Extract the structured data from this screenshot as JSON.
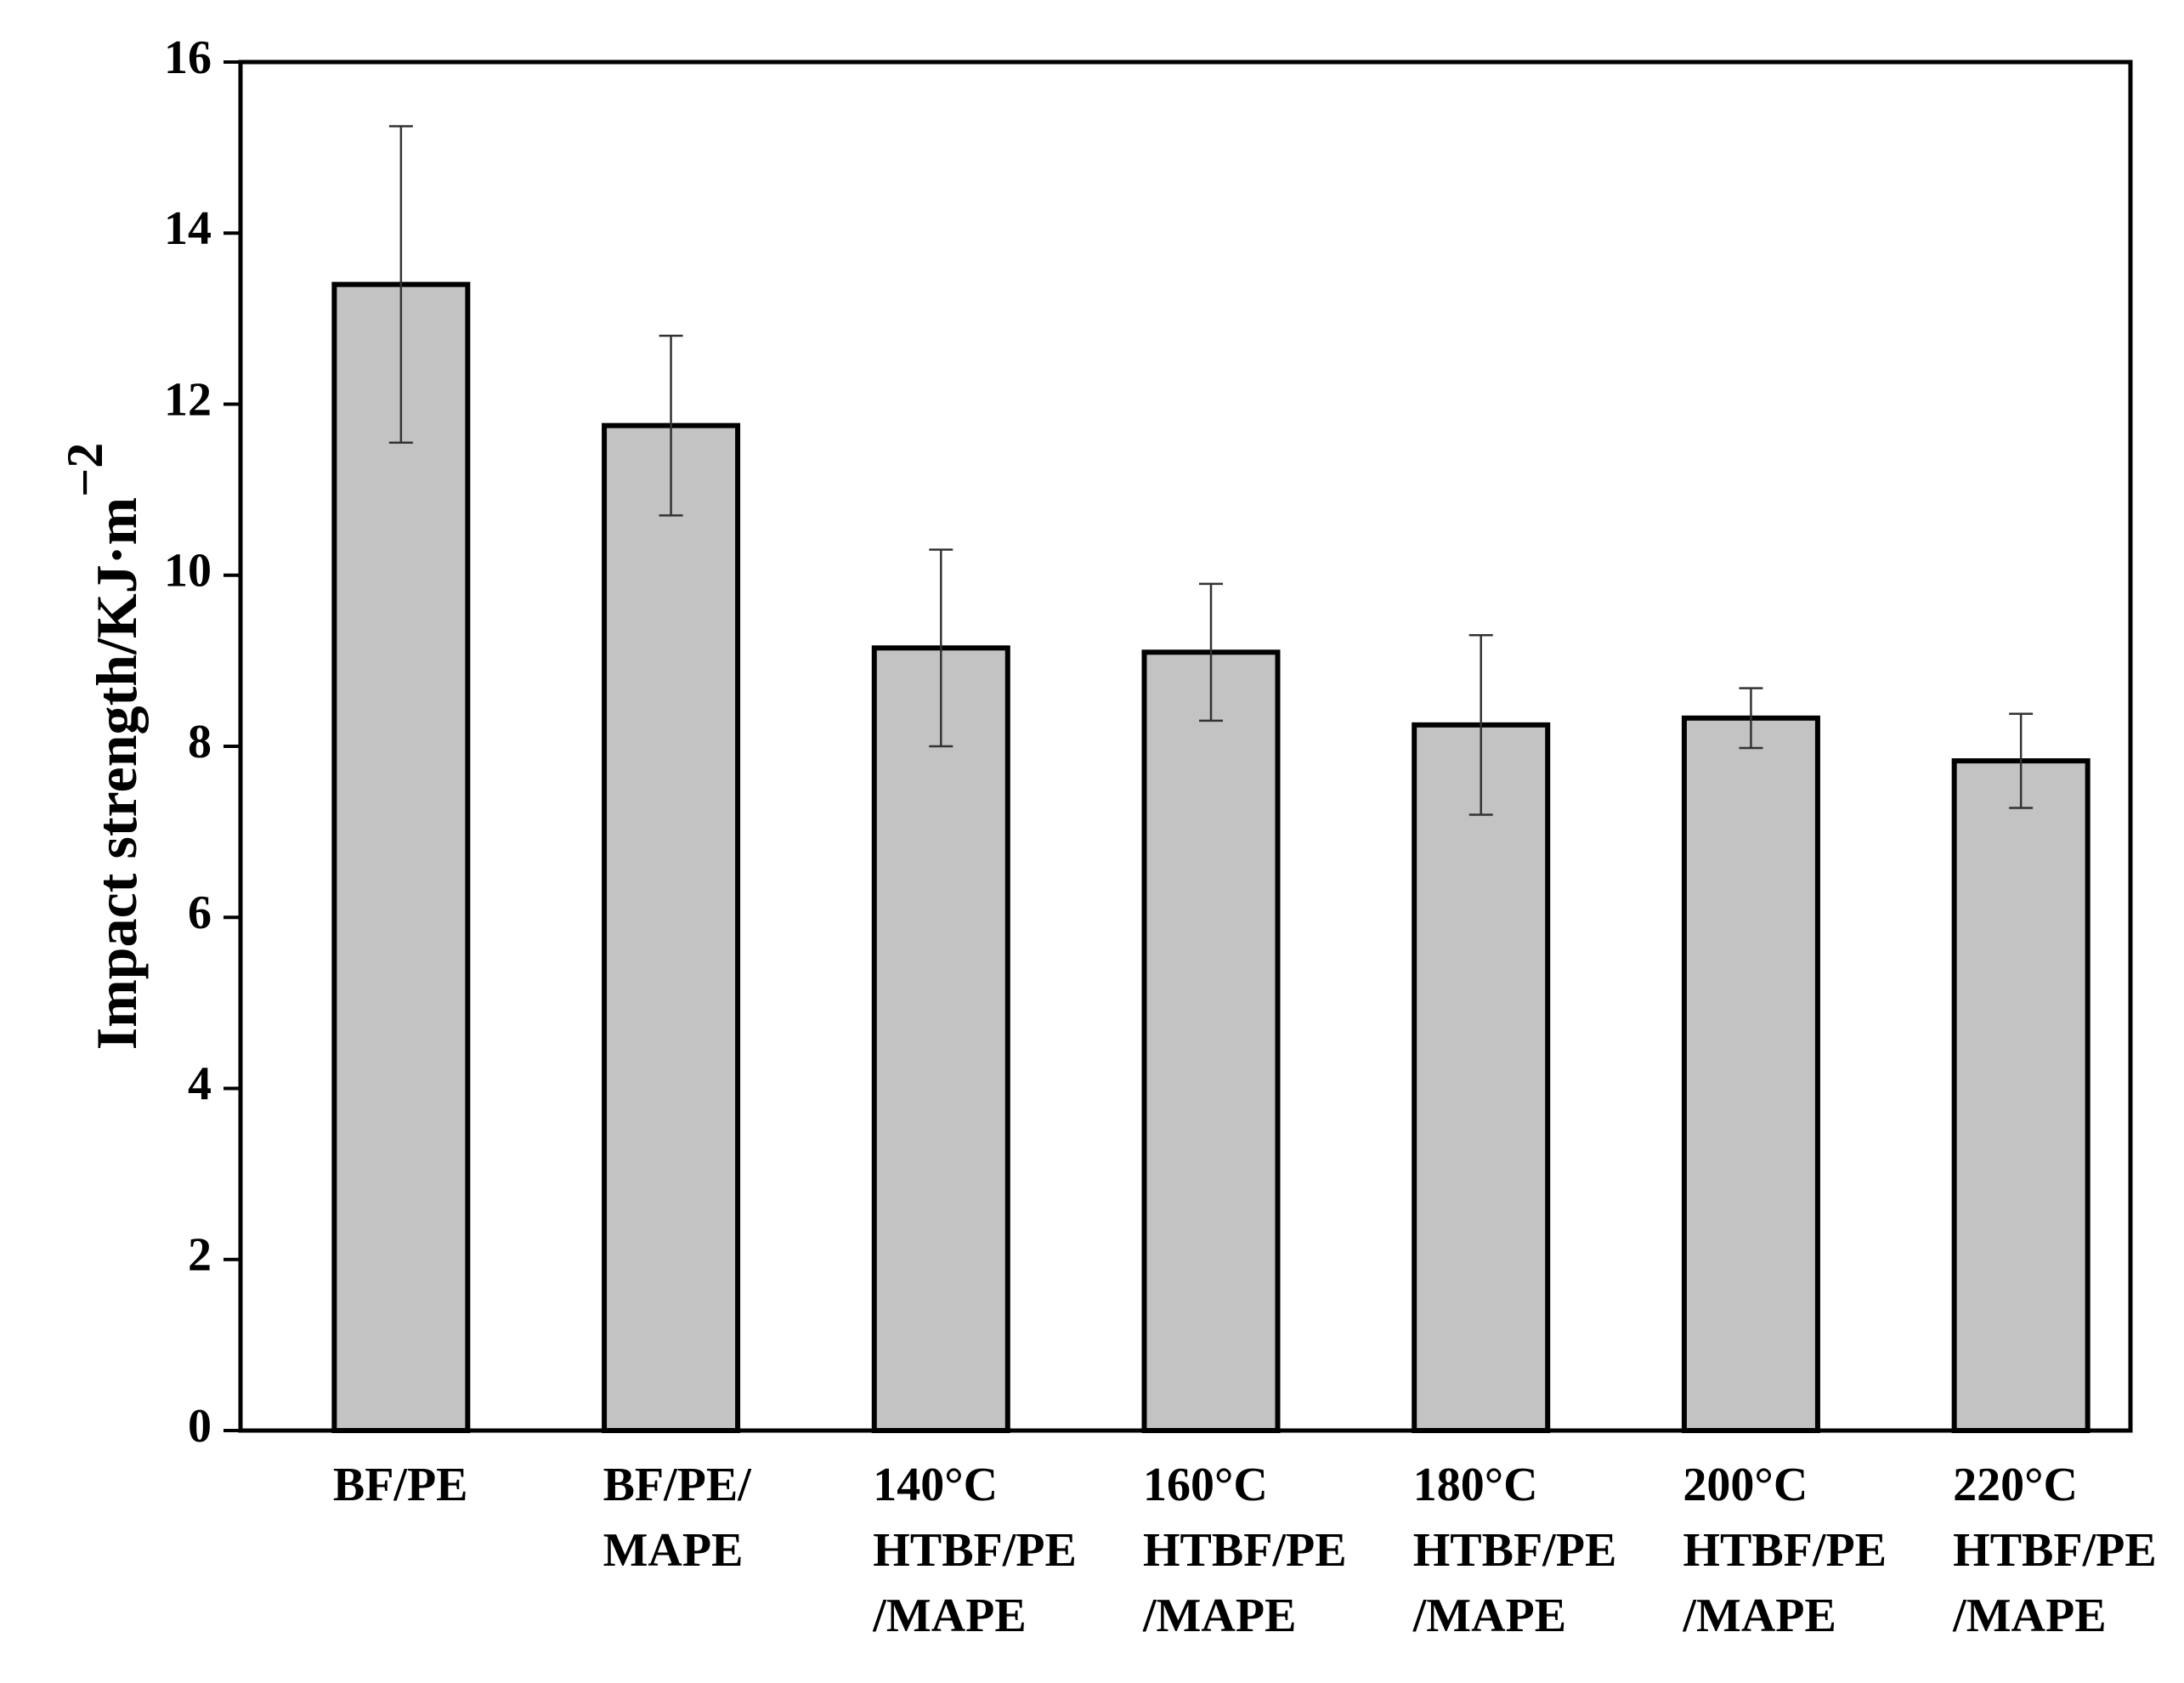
{
  "chart_data": {
    "type": "bar",
    "y_label": "Impact strength/KJ·m",
    "y_label_exponent": "−2",
    "categories": [
      [
        "BF/PE"
      ],
      [
        "BF/PE/",
        "MAPE"
      ],
      [
        "140°C",
        "HTBF/PE",
        "/MAPE"
      ],
      [
        "160°C",
        "HTBF/PE",
        "/MAPE"
      ],
      [
        "180°C",
        "HTBF/PE",
        "/MAPE"
      ],
      [
        "200°C",
        "HTBF/PE",
        "/MAPE"
      ],
      [
        "220°C",
        "HTBF/PE",
        "/MAPE"
      ]
    ],
    "values": [
      13.4,
      11.75,
      9.15,
      9.1,
      8.25,
      8.33,
      7.83
    ],
    "errors": [
      1.85,
      1.05,
      1.15,
      0.8,
      1.05,
      0.35,
      0.55
    ],
    "color": "#c3c3c3",
    "ylim": [
      0,
      16
    ],
    "yticks": [
      0,
      2,
      4,
      6,
      8,
      10,
      12,
      14,
      16
    ],
    "grid": false
  }
}
